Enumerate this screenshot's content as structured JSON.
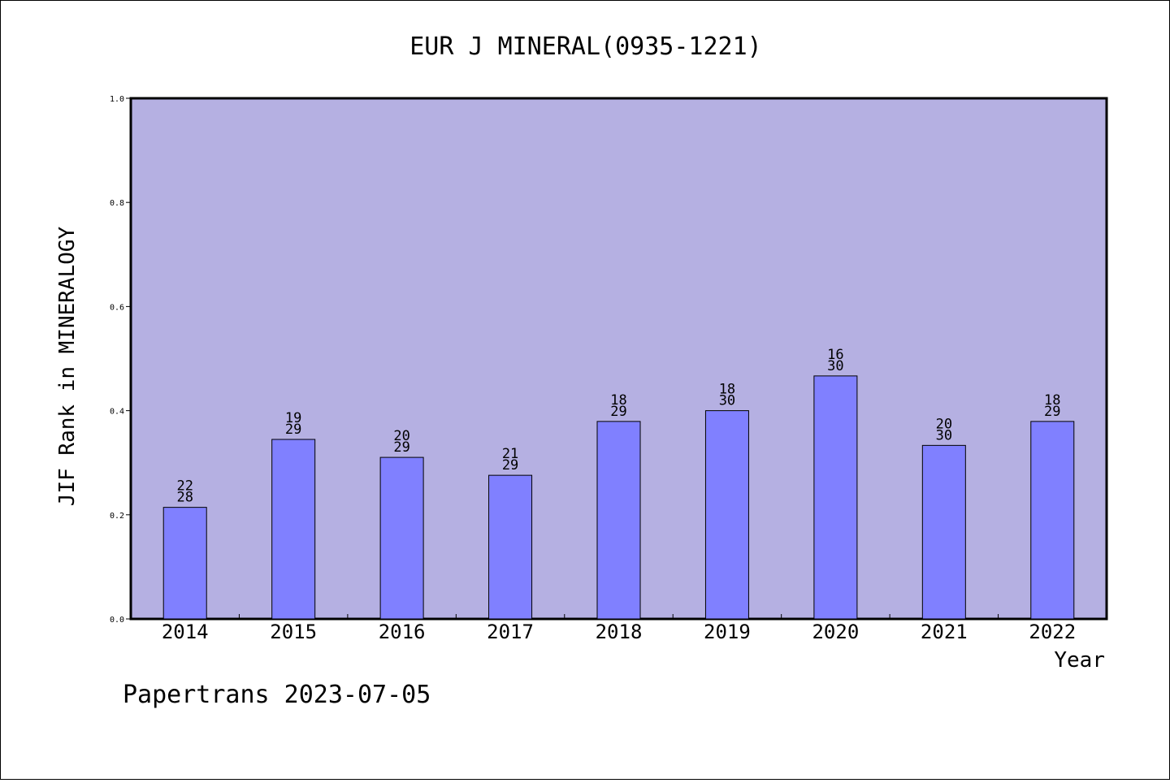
{
  "chart_data": {
    "type": "bar",
    "title": "EUR J MINERAL(0935-1221)",
    "xlabel": "Year",
    "ylabel": "JIF Rank in MINERALOGY",
    "ylim": [
      0,
      1.0
    ],
    "yticks": [
      "0.0",
      "0.2",
      "0.4",
      "0.6",
      "0.8",
      "1.0"
    ],
    "categories": [
      "2014",
      "2015",
      "2016",
      "2017",
      "2018",
      "2019",
      "2020",
      "2021",
      "2022"
    ],
    "series": [
      {
        "values": [
          0.2143,
          0.3448,
          0.3103,
          0.2759,
          0.3793,
          0.4,
          0.4667,
          0.3333,
          0.3793
        ],
        "rank": [
          "22",
          "19",
          "20",
          "21",
          "18",
          "18",
          "16",
          "20",
          "18"
        ],
        "total": [
          "28",
          "29",
          "29",
          "29",
          "29",
          "30",
          "30",
          "30",
          "29"
        ]
      }
    ],
    "colors": {
      "plot_background": "#b5b0e2",
      "bar_fill": "#8080ff",
      "bar_stroke": "#000000"
    },
    "grid": false,
    "legend": "none"
  },
  "footer": {
    "text": "Papertrans 2023-07-05"
  }
}
